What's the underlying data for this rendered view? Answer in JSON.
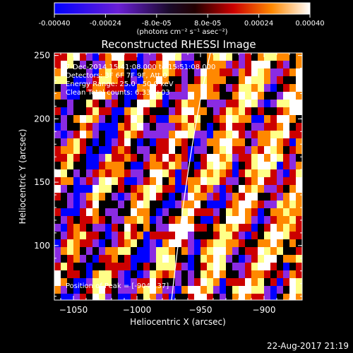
{
  "figure": {
    "title": "Reconstructed RHESSI Image",
    "annotations": [
      "7-Dec-2014 15:41:08.000 to 15:51:08.000",
      "Detectors: 3F 6F 7F 9F, Att 0",
      "Energy Range: 25.0 - 50.0 keV",
      "Clean     Total counts: 6.33E+03"
    ],
    "peak_label": "Position of Peak = [-904,137]",
    "timestamp": "22-Aug-2017 21:19"
  },
  "colorbar": {
    "unit_label": "(photons cm⁻² s⁻¹ asec⁻²)",
    "ticks": [
      {
        "value": -0.0004,
        "label": "-0.00040"
      },
      {
        "value": -0.00024,
        "label": "-0.00024"
      },
      {
        "value": -8e-05,
        "label": "-8.0e-05"
      },
      {
        "value": 8e-05,
        "label": "8.0e-05"
      },
      {
        "value": 0.00024,
        "label": "0.00024"
      },
      {
        "value": 0.0004,
        "label": "0.00040"
      }
    ],
    "range": [
      -0.0004,
      0.0004
    ],
    "colors": [
      "#0000ff",
      "#8a2be2",
      "#000000",
      "#cc0000",
      "#ff8800",
      "#ffff88",
      "#ffffff"
    ]
  },
  "axes": {
    "xlabel": "Heliocentric X (arcsec)",
    "ylabel": "Heliocentric Y (arcsec)",
    "xlim": [
      -1065,
      -870
    ],
    "ylim": [
      57,
      252
    ],
    "xticks": [
      {
        "value": -1050,
        "label": "−1050"
      },
      {
        "value": -1000,
        "label": "−1000"
      },
      {
        "value": -950,
        "label": "−950"
      },
      {
        "value": -900,
        "label": "−900"
      }
    ],
    "yticks": [
      {
        "value": 100,
        "label": "100"
      },
      {
        "value": 150,
        "label": "150"
      },
      {
        "value": 200,
        "label": "200"
      },
      {
        "value": 250,
        "label": "250"
      }
    ]
  }
}
